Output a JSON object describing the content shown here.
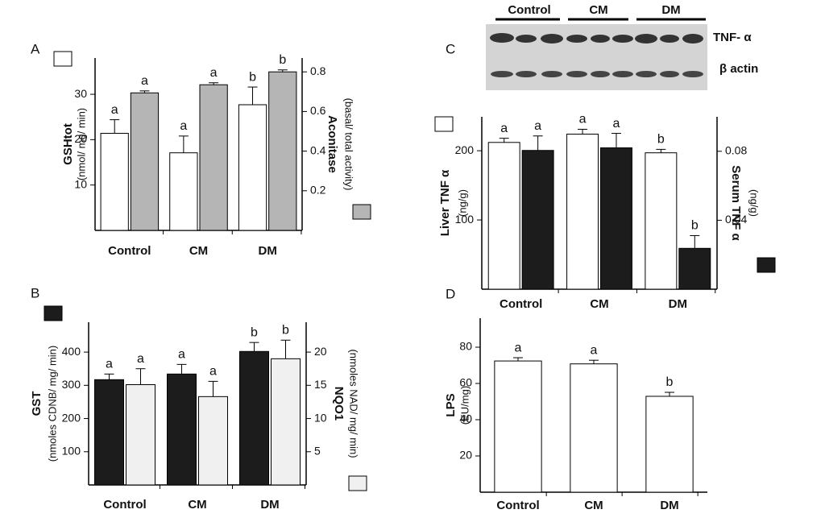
{
  "blot": {
    "panel": "C",
    "groups": [
      "Control",
      "CM",
      "DM"
    ],
    "bands": [
      "TNF- α",
      "β actin"
    ]
  },
  "chart_data": [
    {
      "type": "bar",
      "panel": "A",
      "categories": [
        "Control",
        "CM",
        "DM"
      ],
      "ylabel": "GSHtot",
      "ylabel_unit": "(nmol/ mg/ min)",
      "ylim": [
        0,
        38
      ],
      "yticks": [
        10,
        20,
        30
      ],
      "y2label": "Aconitase",
      "y2label_unit": "(basal/ total activity)",
      "y2lim": [
        0,
        0.87
      ],
      "y2ticks": [
        0.2,
        0.4,
        0.6,
        0.8
      ],
      "series": [
        {
          "color": "#ffffff",
          "values": [
            21.4,
            17.1,
            27.7
          ],
          "errors": [
            3.0,
            3.7,
            3.9
          ],
          "sig_labels": [
            "a",
            "a",
            "b"
          ]
        },
        {
          "color": "#b5b5b5",
          "axis": "y2",
          "values": [
            0.694,
            0.735,
            0.8
          ],
          "errors": [
            0.01,
            0.01,
            0.01
          ],
          "sig_labels": [
            "a",
            "a",
            "b"
          ]
        }
      ]
    },
    {
      "type": "bar",
      "panel": "B",
      "categories": [
        "Control",
        "CM",
        "DM"
      ],
      "ylabel": "GST",
      "ylabel_unit": "(nmoles CDNB/ mg/ min)",
      "ylim": [
        0,
        490
      ],
      "yticks": [
        100,
        200,
        300,
        400
      ],
      "y2label": "NQO1",
      "y2label_unit": "(nmoles NAD/ mg/ min)",
      "y2lim": [
        0,
        24.5
      ],
      "y2ticks": [
        5,
        10,
        15,
        20
      ],
      "series": [
        {
          "color": "#1c1c1c",
          "values": [
            317,
            334,
            402
          ],
          "errors": [
            17,
            29,
            27
          ],
          "sig_labels": [
            "a",
            "a",
            "b"
          ]
        },
        {
          "color": "#f0f0f0",
          "axis": "y2",
          "values": [
            15.1,
            13.3,
            19.0
          ],
          "errors": [
            2.4,
            2.3,
            2.8
          ],
          "sig_labels": [
            "a",
            "a",
            "b"
          ]
        }
      ]
    },
    {
      "type": "bar",
      "categories": [
        "Control",
        "CM",
        "DM"
      ],
      "ylabel": "Liver  TNF α",
      "ylabel_unit": "(ng/g)",
      "ylim": [
        0,
        249
      ],
      "yticks": [
        100,
        200
      ],
      "y2label": "Serum TNF α",
      "y2label_unit": "(ng/g)",
      "y2lim": [
        0,
        0.1
      ],
      "y2ticks": [
        0.04,
        0.08
      ],
      "series": [
        {
          "color": "#ffffff",
          "values": [
            212,
            224,
            197
          ],
          "errors": [
            6,
            7,
            5
          ],
          "sig_labels": [
            "a",
            "a",
            "b"
          ]
        },
        {
          "color": "#1c1c1c",
          "axis": "y2",
          "values": [
            0.0805,
            0.082,
            0.0237
          ],
          "errors": [
            0.0084,
            0.0084,
            0.0074
          ],
          "sig_labels": [
            "a",
            "a",
            "b"
          ]
        }
      ]
    },
    {
      "type": "bar",
      "panel": "D",
      "categories": [
        "Control",
        "CM",
        "DM"
      ],
      "ylabel": "LPS",
      "ylabel_unit": "(EU/mg)",
      "ylim": [
        0,
        96
      ],
      "yticks": [
        20,
        40,
        60,
        80
      ],
      "series": [
        {
          "color": "#ffffff",
          "values": [
            72.4,
            70.8,
            52.9
          ],
          "errors": [
            1.8,
            2.0,
            2.2
          ],
          "sig_labels": [
            "a",
            "a",
            "b"
          ]
        }
      ]
    }
  ]
}
